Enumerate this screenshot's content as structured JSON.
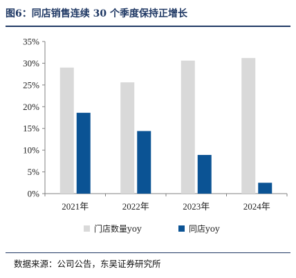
{
  "header": {
    "title": "图6：同店销售连续 30 个季度保持正增长"
  },
  "footer": {
    "source": "数据来源：公司公告，东吴证券研究所"
  },
  "chart_data": {
    "type": "bar",
    "categories": [
      "2021年",
      "2022年",
      "2023年",
      "2024年"
    ],
    "series": [
      {
        "name": "门店数量yoy",
        "values": [
          29.0,
          25.6,
          30.6,
          31.2
        ],
        "color": "#d9d9d9"
      },
      {
        "name": "同店yoy",
        "values": [
          18.6,
          14.4,
          8.9,
          2.5
        ],
        "color": "#0b5394"
      }
    ],
    "yticks": [
      "0%",
      "5%",
      "10%",
      "15%",
      "20%",
      "25%",
      "30%",
      "35%"
    ],
    "ylim": [
      0,
      35
    ],
    "grid": false,
    "legend": "bottom"
  }
}
